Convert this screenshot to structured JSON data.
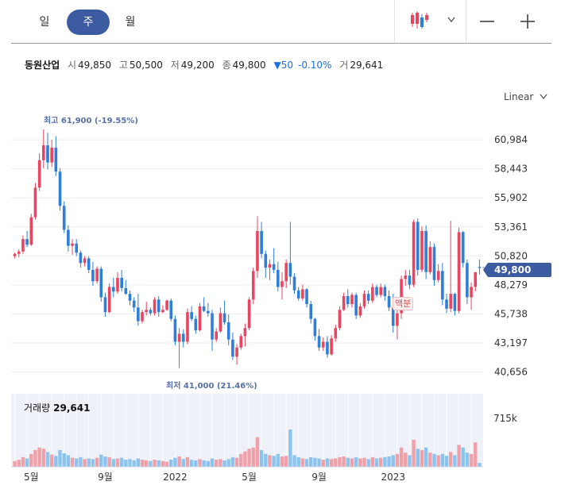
{
  "period_tabs": [
    {
      "label": "일",
      "active": false
    },
    {
      "label": "주",
      "active": true
    },
    {
      "label": "월",
      "active": false
    }
  ],
  "tools": {
    "chart_type_icon": "candlestick-icon",
    "zoom_out": "minus-icon",
    "zoom_in": "plus-icon"
  },
  "stock": {
    "name": "동원산업",
    "open_label": "시",
    "open": "49,850",
    "high_label": "고",
    "high": "50,500",
    "low_label": "저",
    "low": "49,200",
    "close_label": "종",
    "close": "49,800",
    "change": "▼50",
    "change_pct": "-0.10%",
    "volume_label": "거",
    "volume": "29,641"
  },
  "scale_selector": "Linear",
  "current_price_badge": "49,800",
  "annotations": {
    "max_label": "최고 61,900 (-19.55%)",
    "min_label": "최저 41,000 (21.46%)",
    "dividend_label": "액분"
  },
  "volume_panel": {
    "label": "거래량",
    "value": "29,641",
    "scale_tick": "715k"
  },
  "colors": {
    "up": "#e94560",
    "down": "#2f7ed8",
    "accent": "#3d5ba1",
    "vol_up": "#f0a0a8",
    "vol_down": "#8cc4ee"
  },
  "chart_data": {
    "type": "candlestick",
    "interval": "weekly",
    "y_ticks": [
      "60,984",
      "58,443",
      "55,902",
      "53,361",
      "50,820",
      "48,279",
      "45,738",
      "43,197",
      "40,656"
    ],
    "y_tick_values": [
      60984,
      58443,
      55902,
      53361,
      50820,
      48279,
      45738,
      43197,
      40656
    ],
    "ylim": [
      40000,
      62800
    ],
    "x_ticks": [
      {
        "label": "5월",
        "index": 4
      },
      {
        "label": "9월",
        "index": 22
      },
      {
        "label": "2022",
        "index": 39
      },
      {
        "label": "5월",
        "index": 57
      },
      {
        "label": "9월",
        "index": 74
      },
      {
        "label": "2023",
        "index": 92
      }
    ],
    "candles": [
      [
        50800,
        51100,
        50600,
        51000,
        90
      ],
      [
        51000,
        51400,
        50700,
        51200,
        110
      ],
      [
        51200,
        52600,
        51000,
        52300,
        150
      ],
      [
        52300,
        53000,
        51600,
        51800,
        130
      ],
      [
        51800,
        54500,
        51700,
        54200,
        200
      ],
      [
        54200,
        57200,
        54000,
        56800,
        260
      ],
      [
        56800,
        59800,
        56500,
        59200,
        300
      ],
      [
        59200,
        61900,
        58500,
        60500,
        280
      ],
      [
        60500,
        61600,
        58400,
        59000,
        230
      ],
      [
        59000,
        61000,
        58600,
        60300,
        190
      ],
      [
        60300,
        61300,
        57800,
        58200,
        170
      ],
      [
        58200,
        58500,
        54800,
        55200,
        260
      ],
      [
        55200,
        55600,
        52800,
        53100,
        210
      ],
      [
        53100,
        53500,
        51200,
        51700,
        180
      ],
      [
        51700,
        52300,
        50900,
        51900,
        140
      ],
      [
        51900,
        52300,
        50800,
        51100,
        130
      ],
      [
        51100,
        51300,
        49800,
        50200,
        150
      ],
      [
        50200,
        50800,
        49900,
        50600,
        120
      ],
      [
        50600,
        50800,
        49300,
        49600,
        130
      ],
      [
        49600,
        50300,
        48200,
        48600,
        120
      ],
      [
        48600,
        49900,
        48400,
        49700,
        140
      ],
      [
        49700,
        49900,
        46800,
        47200,
        190
      ],
      [
        47200,
        47600,
        45500,
        45900,
        160
      ],
      [
        45900,
        48400,
        45800,
        48100,
        150
      ],
      [
        48100,
        48900,
        47200,
        47700,
        120
      ],
      [
        47700,
        49400,
        47500,
        48900,
        130
      ],
      [
        48900,
        49600,
        47700,
        48000,
        140
      ],
      [
        48000,
        48700,
        47400,
        47500,
        110
      ],
      [
        47500,
        47800,
        46500,
        46900,
        120
      ],
      [
        46900,
        47200,
        45900,
        46300,
        100
      ],
      [
        46300,
        47500,
        44700,
        45100,
        130
      ],
      [
        45100,
        46100,
        44900,
        45900,
        110
      ],
      [
        45900,
        46800,
        45600,
        46100,
        100
      ],
      [
        46100,
        46300,
        45600,
        45800,
        90
      ],
      [
        45800,
        47200,
        45600,
        47000,
        110
      ],
      [
        47000,
        47300,
        45500,
        45900,
        100
      ],
      [
        45900,
        46500,
        45800,
        46100,
        90
      ],
      [
        46100,
        47000,
        46000,
        46900,
        80
      ],
      [
        46900,
        47100,
        45100,
        45300,
        110
      ],
      [
        45300,
        45600,
        43000,
        43300,
        140
      ],
      [
        43300,
        44500,
        41000,
        44000,
        160
      ],
      [
        44000,
        44400,
        42800,
        43300,
        120
      ],
      [
        43300,
        46200,
        43100,
        45900,
        150
      ],
      [
        45900,
        46400,
        45100,
        45300,
        110
      ],
      [
        45300,
        45600,
        44000,
        44300,
        100
      ],
      [
        44300,
        46700,
        44200,
        46400,
        120
      ],
      [
        46400,
        47200,
        45900,
        46000,
        100
      ],
      [
        46000,
        46700,
        45500,
        45800,
        90
      ],
      [
        45800,
        46100,
        42500,
        43500,
        130
      ],
      [
        43500,
        44500,
        43300,
        44200,
        110
      ],
      [
        44200,
        46300,
        44100,
        45800,
        120
      ],
      [
        45800,
        46900,
        44800,
        45000,
        100
      ],
      [
        45000,
        45700,
        43000,
        43500,
        120
      ],
      [
        43500,
        44100,
        41700,
        42000,
        150
      ],
      [
        42000,
        43100,
        41300,
        42800,
        140
      ],
      [
        42800,
        44000,
        42600,
        43800,
        200
      ],
      [
        43800,
        44900,
        42900,
        44500,
        240
      ],
      [
        44500,
        47200,
        44300,
        47000,
        280
      ],
      [
        47000,
        49800,
        46600,
        49500,
        300
      ],
      [
        49500,
        54300,
        48900,
        53000,
        460
      ],
      [
        53000,
        53800,
        50600,
        51000,
        260
      ],
      [
        51000,
        51300,
        48900,
        49800,
        200
      ],
      [
        49800,
        50500,
        48700,
        50100,
        180
      ],
      [
        50100,
        51500,
        49300,
        49600,
        170
      ],
      [
        49600,
        50300,
        47700,
        48100,
        200
      ],
      [
        48100,
        49400,
        47000,
        48600,
        160
      ],
      [
        48600,
        50500,
        48000,
        50200,
        170
      ],
      [
        50200,
        53800,
        48300,
        49000,
        580
      ],
      [
        49000,
        49300,
        47500,
        47800,
        180
      ],
      [
        47800,
        48100,
        46900,
        47100,
        150
      ],
      [
        47100,
        48300,
        46900,
        47900,
        130
      ],
      [
        47900,
        48000,
        46300,
        46600,
        120
      ],
      [
        46600,
        46900,
        44900,
        45300,
        150
      ],
      [
        45300,
        45400,
        43400,
        43800,
        140
      ],
      [
        43800,
        44400,
        42500,
        42800,
        130
      ],
      [
        42800,
        43700,
        42500,
        43300,
        110
      ],
      [
        43300,
        43800,
        41900,
        42200,
        130
      ],
      [
        42200,
        43900,
        42100,
        43600,
        120
      ],
      [
        43600,
        44800,
        43300,
        44500,
        130
      ],
      [
        44500,
        46400,
        44300,
        46100,
        150
      ],
      [
        46100,
        47600,
        46000,
        47300,
        160
      ],
      [
        47300,
        47900,
        46300,
        46600,
        140
      ],
      [
        46600,
        47600,
        46300,
        47400,
        130
      ],
      [
        47400,
        47600,
        45300,
        45600,
        150
      ],
      [
        45600,
        46700,
        45400,
        46400,
        130
      ],
      [
        46400,
        47800,
        46200,
        47500,
        140
      ],
      [
        47500,
        47800,
        46600,
        46900,
        120
      ],
      [
        46900,
        48400,
        46700,
        48100,
        150
      ],
      [
        48100,
        48300,
        47200,
        47400,
        130
      ],
      [
        47400,
        48400,
        47200,
        48100,
        140
      ],
      [
        48100,
        48300,
        46900,
        47300,
        150
      ],
      [
        47300,
        47800,
        46000,
        46300,
        160
      ],
      [
        46300,
        47500,
        44100,
        44700,
        180
      ],
      [
        44700,
        46100,
        43500,
        45800,
        200
      ],
      [
        45800,
        49100,
        45300,
        48800,
        300
      ],
      [
        48800,
        49600,
        48200,
        49100,
        220
      ],
      [
        49100,
        49600,
        47900,
        48300,
        180
      ],
      [
        48300,
        54000,
        48100,
        53800,
        420
      ],
      [
        53800,
        54100,
        49100,
        49600,
        280
      ],
      [
        49600,
        53400,
        49400,
        53000,
        260
      ],
      [
        53000,
        53500,
        48800,
        49400,
        300
      ],
      [
        49400,
        52100,
        49200,
        51600,
        220
      ],
      [
        51600,
        51900,
        48200,
        48700,
        200
      ],
      [
        48700,
        50100,
        48500,
        49500,
        180
      ],
      [
        49500,
        50200,
        46500,
        47000,
        200
      ],
      [
        47000,
        47500,
        45800,
        46200,
        170
      ],
      [
        46200,
        53900,
        45900,
        47500,
        230
      ],
      [
        47500,
        47600,
        45600,
        46000,
        180
      ],
      [
        46000,
        53300,
        45800,
        52900,
        340
      ],
      [
        52900,
        53000,
        49800,
        50200,
        300
      ],
      [
        50200,
        50500,
        46600,
        47200,
        220
      ],
      [
        47200,
        48500,
        46100,
        48100,
        200
      ],
      [
        48100,
        49400,
        47700,
        49400,
        380
      ],
      [
        49850,
        50500,
        49200,
        49800,
        60
      ]
    ],
    "volume_ymax": 715
  }
}
